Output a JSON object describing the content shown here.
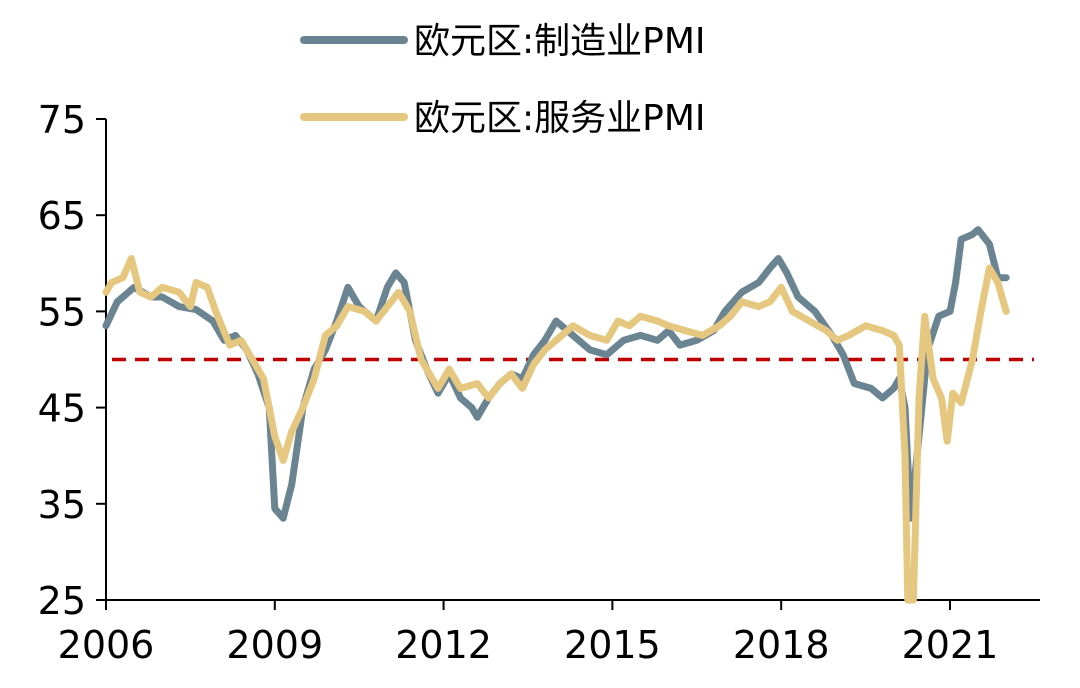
{
  "chart_data": {
    "type": "line",
    "title": "",
    "xlabel": "",
    "ylabel": "",
    "xlim": [
      2006,
      2022.6
    ],
    "ylim": [
      25,
      75
    ],
    "x_ticks": [
      "2006",
      "2009",
      "2012",
      "2015",
      "2018",
      "2021"
    ],
    "y_ticks": [
      "25",
      "35",
      "45",
      "55",
      "65",
      "75"
    ],
    "grid": false,
    "legend_position": "top",
    "reference_line": {
      "y": 50,
      "color": "#c00000",
      "style": "dashed"
    },
    "series": [
      {
        "name": "欧元区:制造业PMI",
        "color": "#6a8492",
        "points": [
          [
            2006.0,
            53.5
          ],
          [
            2006.2,
            56.0
          ],
          [
            2006.5,
            57.5
          ],
          [
            2006.8,
            56.5
          ],
          [
            2007.0,
            56.5
          ],
          [
            2007.3,
            55.5
          ],
          [
            2007.6,
            55.2
          ],
          [
            2007.9,
            54.0
          ],
          [
            2008.1,
            52.0
          ],
          [
            2008.3,
            52.5
          ],
          [
            2008.5,
            51.0
          ],
          [
            2008.7,
            48.5
          ],
          [
            2008.9,
            45.0
          ],
          [
            2009.0,
            34.5
          ],
          [
            2009.15,
            33.5
          ],
          [
            2009.3,
            37.0
          ],
          [
            2009.5,
            45.0
          ],
          [
            2009.7,
            49.0
          ],
          [
            2009.9,
            51.0
          ],
          [
            2010.1,
            54.0
          ],
          [
            2010.3,
            57.5
          ],
          [
            2010.5,
            55.5
          ],
          [
            2010.8,
            54.0
          ],
          [
            2011.0,
            57.5
          ],
          [
            2011.15,
            59.0
          ],
          [
            2011.3,
            58.0
          ],
          [
            2011.5,
            52.0
          ],
          [
            2011.7,
            49.0
          ],
          [
            2011.9,
            46.5
          ],
          [
            2012.1,
            48.5
          ],
          [
            2012.3,
            46.0
          ],
          [
            2012.5,
            45.0
          ],
          [
            2012.6,
            44.0
          ],
          [
            2012.8,
            46.0
          ],
          [
            2013.0,
            47.5
          ],
          [
            2013.2,
            48.5
          ],
          [
            2013.4,
            48.0
          ],
          [
            2013.6,
            50.5
          ],
          [
            2013.8,
            52.0
          ],
          [
            2014.0,
            54.0
          ],
          [
            2014.3,
            52.5
          ],
          [
            2014.6,
            51.0
          ],
          [
            2014.9,
            50.5
          ],
          [
            2015.2,
            52.0
          ],
          [
            2015.5,
            52.5
          ],
          [
            2015.8,
            52.0
          ],
          [
            2016.0,
            53.0
          ],
          [
            2016.2,
            51.5
          ],
          [
            2016.5,
            52.0
          ],
          [
            2016.8,
            53.0
          ],
          [
            2017.0,
            55.0
          ],
          [
            2017.3,
            57.0
          ],
          [
            2017.6,
            58.0
          ],
          [
            2017.8,
            59.5
          ],
          [
            2017.95,
            60.5
          ],
          [
            2018.1,
            59.0
          ],
          [
            2018.3,
            56.5
          ],
          [
            2018.6,
            55.0
          ],
          [
            2018.9,
            52.5
          ],
          [
            2019.1,
            50.5
          ],
          [
            2019.3,
            47.5
          ],
          [
            2019.6,
            47.0
          ],
          [
            2019.8,
            46.0
          ],
          [
            2020.0,
            47.0
          ],
          [
            2020.1,
            48.0
          ],
          [
            2020.2,
            45.0
          ],
          [
            2020.3,
            33.5
          ],
          [
            2020.45,
            42.0
          ],
          [
            2020.6,
            51.0
          ],
          [
            2020.8,
            54.5
          ],
          [
            2021.0,
            55.0
          ],
          [
            2021.1,
            58.0
          ],
          [
            2021.2,
            62.5
          ],
          [
            2021.4,
            63.0
          ],
          [
            2021.5,
            63.5
          ],
          [
            2021.7,
            62.0
          ],
          [
            2021.85,
            58.5
          ],
          [
            2022.0,
            58.5
          ]
        ]
      },
      {
        "name": "欧元区:服务业PMI",
        "color": "#e6c77f",
        "points": [
          [
            2006.0,
            57.0
          ],
          [
            2006.1,
            58.0
          ],
          [
            2006.3,
            58.5
          ],
          [
            2006.45,
            60.5
          ],
          [
            2006.6,
            57.0
          ],
          [
            2006.8,
            56.5
          ],
          [
            2007.0,
            57.5
          ],
          [
            2007.3,
            57.0
          ],
          [
            2007.5,
            55.5
          ],
          [
            2007.6,
            58.0
          ],
          [
            2007.8,
            57.5
          ],
          [
            2007.95,
            55.0
          ],
          [
            2008.2,
            51.5
          ],
          [
            2008.4,
            52.0
          ],
          [
            2008.6,
            50.0
          ],
          [
            2008.8,
            48.0
          ],
          [
            2009.0,
            42.0
          ],
          [
            2009.15,
            39.5
          ],
          [
            2009.3,
            42.5
          ],
          [
            2009.5,
            45.0
          ],
          [
            2009.7,
            48.0
          ],
          [
            2009.9,
            52.5
          ],
          [
            2010.1,
            53.5
          ],
          [
            2010.3,
            55.5
          ],
          [
            2010.6,
            55.0
          ],
          [
            2010.8,
            54.0
          ],
          [
            2011.0,
            55.5
          ],
          [
            2011.2,
            57.0
          ],
          [
            2011.4,
            55.0
          ],
          [
            2011.6,
            50.0
          ],
          [
            2011.9,
            47.0
          ],
          [
            2012.1,
            49.0
          ],
          [
            2012.3,
            47.0
          ],
          [
            2012.6,
            47.5
          ],
          [
            2012.8,
            46.0
          ],
          [
            2013.0,
            47.5
          ],
          [
            2013.2,
            48.5
          ],
          [
            2013.4,
            47.0
          ],
          [
            2013.6,
            49.5
          ],
          [
            2013.8,
            51.0
          ],
          [
            2014.0,
            52.0
          ],
          [
            2014.3,
            53.5
          ],
          [
            2014.6,
            52.5
          ],
          [
            2014.9,
            52.0
          ],
          [
            2015.1,
            54.0
          ],
          [
            2015.3,
            53.5
          ],
          [
            2015.5,
            54.5
          ],
          [
            2015.8,
            54.0
          ],
          [
            2016.0,
            53.5
          ],
          [
            2016.3,
            53.0
          ],
          [
            2016.6,
            52.5
          ],
          [
            2016.9,
            53.5
          ],
          [
            2017.1,
            54.5
          ],
          [
            2017.3,
            56.0
          ],
          [
            2017.6,
            55.5
          ],
          [
            2017.8,
            56.0
          ],
          [
            2018.0,
            57.5
          ],
          [
            2018.2,
            55.0
          ],
          [
            2018.5,
            54.0
          ],
          [
            2018.8,
            53.0
          ],
          [
            2019.0,
            52.0
          ],
          [
            2019.2,
            52.5
          ],
          [
            2019.5,
            53.5
          ],
          [
            2019.8,
            53.0
          ],
          [
            2020.0,
            52.5
          ],
          [
            2020.1,
            51.5
          ],
          [
            2020.2,
            40.0
          ],
          [
            2020.25,
            25.0
          ],
          [
            2020.35,
            25.0
          ],
          [
            2020.45,
            46.0
          ],
          [
            2020.55,
            54.5
          ],
          [
            2020.7,
            48.0
          ],
          [
            2020.85,
            46.0
          ],
          [
            2020.95,
            41.5
          ],
          [
            2021.05,
            46.5
          ],
          [
            2021.2,
            45.5
          ],
          [
            2021.4,
            50.0
          ],
          [
            2021.55,
            55.0
          ],
          [
            2021.7,
            59.5
          ],
          [
            2021.85,
            58.0
          ],
          [
            2022.0,
            55.0
          ]
        ]
      }
    ]
  }
}
